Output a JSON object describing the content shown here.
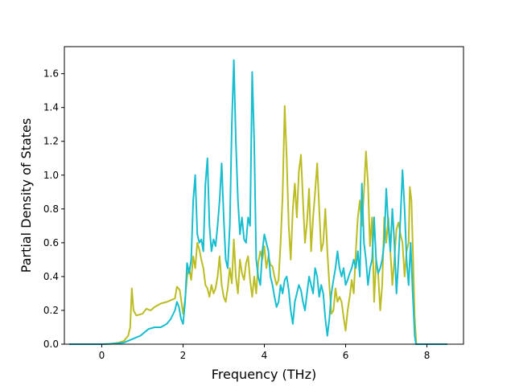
{
  "chart_data": {
    "type": "line",
    "title": "",
    "xlabel": "Frequency (THz)",
    "ylabel": "Partial Density of States",
    "xlim": [
      -0.92,
      8.9
    ],
    "ylim": [
      0,
      1.76
    ],
    "xticks": [
      0,
      2,
      4,
      6,
      8
    ],
    "yticks": [
      0.0,
      0.2,
      0.4,
      0.6,
      0.8,
      1.0,
      1.2,
      1.4,
      1.6
    ],
    "xtick_labels": [
      "0",
      "2",
      "4",
      "6",
      "8"
    ],
    "ytick_labels": [
      "0.0",
      "0.2",
      "0.4",
      "0.6",
      "0.8",
      "1.0",
      "1.2",
      "1.4",
      "1.6"
    ],
    "grid": false,
    "legend": "none",
    "series": [
      {
        "color": "#bcbd22",
        "stroke_width": 2,
        "points": [
          [
            -0.8,
            0
          ],
          [
            0.0,
            0
          ],
          [
            0.2,
            0.002
          ],
          [
            0.4,
            0.008
          ],
          [
            0.55,
            0.02
          ],
          [
            0.65,
            0.05
          ],
          [
            0.7,
            0.1
          ],
          [
            0.74,
            0.33
          ],
          [
            0.78,
            0.2
          ],
          [
            0.85,
            0.17
          ],
          [
            1.0,
            0.18
          ],
          [
            1.1,
            0.21
          ],
          [
            1.2,
            0.2
          ],
          [
            1.3,
            0.22
          ],
          [
            1.45,
            0.24
          ],
          [
            1.6,
            0.25
          ],
          [
            1.7,
            0.26
          ],
          [
            1.8,
            0.27
          ],
          [
            1.85,
            0.34
          ],
          [
            1.92,
            0.32
          ],
          [
            2.0,
            0.18
          ],
          [
            2.05,
            0.26
          ],
          [
            2.1,
            0.4
          ],
          [
            2.15,
            0.45
          ],
          [
            2.2,
            0.38
          ],
          [
            2.25,
            0.52
          ],
          [
            2.3,
            0.45
          ],
          [
            2.35,
            0.6
          ],
          [
            2.4,
            0.56
          ],
          [
            2.45,
            0.5
          ],
          [
            2.5,
            0.45
          ],
          [
            2.55,
            0.35
          ],
          [
            2.6,
            0.33
          ],
          [
            2.65,
            0.28
          ],
          [
            2.7,
            0.35
          ],
          [
            2.75,
            0.3
          ],
          [
            2.8,
            0.33
          ],
          [
            2.85,
            0.4
          ],
          [
            2.9,
            0.52
          ],
          [
            2.95,
            0.35
          ],
          [
            3.0,
            0.28
          ],
          [
            3.05,
            0.25
          ],
          [
            3.1,
            0.33
          ],
          [
            3.15,
            0.45
          ],
          [
            3.2,
            0.36
          ],
          [
            3.25,
            0.62
          ],
          [
            3.3,
            0.4
          ],
          [
            3.35,
            0.3
          ],
          [
            3.4,
            0.5
          ],
          [
            3.45,
            0.42
          ],
          [
            3.5,
            0.38
          ],
          [
            3.55,
            0.48
          ],
          [
            3.6,
            0.52
          ],
          [
            3.65,
            0.38
          ],
          [
            3.7,
            0.28
          ],
          [
            3.75,
            0.4
          ],
          [
            3.8,
            0.3
          ],
          [
            3.85,
            0.48
          ],
          [
            3.9,
            0.55
          ],
          [
            3.95,
            0.5
          ],
          [
            4.0,
            0.58
          ],
          [
            4.05,
            0.45
          ],
          [
            4.1,
            0.52
          ],
          [
            4.15,
            0.47
          ],
          [
            4.2,
            0.46
          ],
          [
            4.25,
            0.4
          ],
          [
            4.3,
            0.35
          ],
          [
            4.35,
            0.38
          ],
          [
            4.4,
            0.6
          ],
          [
            4.45,
            0.88
          ],
          [
            4.5,
            1.41
          ],
          [
            4.55,
            1.1
          ],
          [
            4.6,
            0.7
          ],
          [
            4.65,
            0.5
          ],
          [
            4.7,
            0.8
          ],
          [
            4.75,
            0.95
          ],
          [
            4.8,
            0.75
          ],
          [
            4.85,
            1.02
          ],
          [
            4.9,
            1.12
          ],
          [
            4.95,
            0.85
          ],
          [
            5.0,
            0.6
          ],
          [
            5.05,
            0.72
          ],
          [
            5.1,
            0.92
          ],
          [
            5.15,
            0.55
          ],
          [
            5.2,
            0.75
          ],
          [
            5.25,
            0.9
          ],
          [
            5.3,
            1.07
          ],
          [
            5.35,
            0.8
          ],
          [
            5.4,
            0.55
          ],
          [
            5.45,
            0.6
          ],
          [
            5.5,
            0.8
          ],
          [
            5.55,
            0.55
          ],
          [
            5.6,
            0.35
          ],
          [
            5.65,
            0.18
          ],
          [
            5.7,
            0.2
          ],
          [
            5.75,
            0.33
          ],
          [
            5.8,
            0.25
          ],
          [
            5.85,
            0.28
          ],
          [
            5.9,
            0.25
          ],
          [
            5.95,
            0.16
          ],
          [
            6.0,
            0.08
          ],
          [
            6.05,
            0.2
          ],
          [
            6.1,
            0.28
          ],
          [
            6.15,
            0.38
          ],
          [
            6.2,
            0.3
          ],
          [
            6.25,
            0.55
          ],
          [
            6.3,
            0.75
          ],
          [
            6.35,
            0.85
          ],
          [
            6.4,
            0.7
          ],
          [
            6.45,
            0.9
          ],
          [
            6.5,
            1.14
          ],
          [
            6.55,
            0.95
          ],
          [
            6.6,
            0.58
          ],
          [
            6.65,
            0.75
          ],
          [
            6.7,
            0.25
          ],
          [
            6.75,
            0.5
          ],
          [
            6.8,
            0.42
          ],
          [
            6.85,
            0.2
          ],
          [
            6.9,
            0.35
          ],
          [
            6.95,
            0.75
          ],
          [
            7.0,
            0.6
          ],
          [
            7.05,
            0.75
          ],
          [
            7.1,
            0.55
          ],
          [
            7.15,
            0.35
          ],
          [
            7.2,
            0.5
          ],
          [
            7.25,
            0.68
          ],
          [
            7.3,
            0.72
          ],
          [
            7.35,
            0.65
          ],
          [
            7.4,
            0.6
          ],
          [
            7.45,
            0.4
          ],
          [
            7.5,
            0.55
          ],
          [
            7.55,
            0.6
          ],
          [
            7.58,
            0.93
          ],
          [
            7.62,
            0.85
          ],
          [
            7.66,
            0.5
          ],
          [
            7.7,
            0.15
          ],
          [
            7.74,
            0.0
          ],
          [
            8.0,
            0
          ],
          [
            8.5,
            0
          ]
        ]
      },
      {
        "color": "#17becf",
        "stroke_width": 2,
        "points": [
          [
            -0.8,
            0
          ],
          [
            0.0,
            0
          ],
          [
            0.2,
            0.002
          ],
          [
            0.4,
            0.005
          ],
          [
            0.55,
            0.01
          ],
          [
            0.65,
            0.02
          ],
          [
            0.75,
            0.03
          ],
          [
            0.85,
            0.04
          ],
          [
            0.95,
            0.05
          ],
          [
            1.05,
            0.07
          ],
          [
            1.15,
            0.09
          ],
          [
            1.3,
            0.1
          ],
          [
            1.45,
            0.1
          ],
          [
            1.6,
            0.12
          ],
          [
            1.7,
            0.15
          ],
          [
            1.8,
            0.2
          ],
          [
            1.85,
            0.25
          ],
          [
            1.9,
            0.22
          ],
          [
            1.95,
            0.15
          ],
          [
            2.0,
            0.12
          ],
          [
            2.05,
            0.25
          ],
          [
            2.1,
            0.48
          ],
          [
            2.15,
            0.42
          ],
          [
            2.2,
            0.5
          ],
          [
            2.25,
            0.85
          ],
          [
            2.3,
            1.0
          ],
          [
            2.35,
            0.65
          ],
          [
            2.4,
            0.6
          ],
          [
            2.45,
            0.62
          ],
          [
            2.5,
            0.55
          ],
          [
            2.55,
            0.95
          ],
          [
            2.6,
            1.1
          ],
          [
            2.65,
            0.7
          ],
          [
            2.7,
            0.55
          ],
          [
            2.75,
            0.62
          ],
          [
            2.8,
            0.58
          ],
          [
            2.85,
            0.7
          ],
          [
            2.9,
            0.85
          ],
          [
            2.95,
            1.07
          ],
          [
            3.0,
            0.75
          ],
          [
            3.05,
            0.5
          ],
          [
            3.1,
            0.45
          ],
          [
            3.15,
            0.7
          ],
          [
            3.2,
            1.3
          ],
          [
            3.25,
            1.68
          ],
          [
            3.3,
            1.2
          ],
          [
            3.35,
            0.85
          ],
          [
            3.4,
            0.65
          ],
          [
            3.45,
            0.75
          ],
          [
            3.5,
            0.62
          ],
          [
            3.55,
            0.6
          ],
          [
            3.6,
            0.75
          ],
          [
            3.65,
            0.7
          ],
          [
            3.7,
            1.61
          ],
          [
            3.75,
            1.2
          ],
          [
            3.8,
            0.5
          ],
          [
            3.85,
            0.4
          ],
          [
            3.9,
            0.35
          ],
          [
            3.95,
            0.55
          ],
          [
            4.0,
            0.65
          ],
          [
            4.05,
            0.6
          ],
          [
            4.1,
            0.55
          ],
          [
            4.15,
            0.4
          ],
          [
            4.2,
            0.35
          ],
          [
            4.25,
            0.28
          ],
          [
            4.3,
            0.22
          ],
          [
            4.35,
            0.25
          ],
          [
            4.4,
            0.35
          ],
          [
            4.45,
            0.3
          ],
          [
            4.5,
            0.38
          ],
          [
            4.55,
            0.4
          ],
          [
            4.6,
            0.32
          ],
          [
            4.65,
            0.2
          ],
          [
            4.7,
            0.12
          ],
          [
            4.75,
            0.25
          ],
          [
            4.8,
            0.3
          ],
          [
            4.85,
            0.35
          ],
          [
            4.9,
            0.32
          ],
          [
            4.95,
            0.25
          ],
          [
            5.0,
            0.2
          ],
          [
            5.05,
            0.3
          ],
          [
            5.1,
            0.4
          ],
          [
            5.15,
            0.35
          ],
          [
            5.2,
            0.3
          ],
          [
            5.25,
            0.45
          ],
          [
            5.3,
            0.4
          ],
          [
            5.35,
            0.28
          ],
          [
            5.4,
            0.35
          ],
          [
            5.45,
            0.3
          ],
          [
            5.5,
            0.15
          ],
          [
            5.55,
            0.05
          ],
          [
            5.6,
            0.15
          ],
          [
            5.65,
            0.3
          ],
          [
            5.7,
            0.38
          ],
          [
            5.75,
            0.45
          ],
          [
            5.8,
            0.55
          ],
          [
            5.85,
            0.45
          ],
          [
            5.9,
            0.4
          ],
          [
            5.95,
            0.45
          ],
          [
            6.0,
            0.35
          ],
          [
            6.05,
            0.38
          ],
          [
            6.1,
            0.42
          ],
          [
            6.15,
            0.45
          ],
          [
            6.2,
            0.5
          ],
          [
            6.25,
            0.45
          ],
          [
            6.3,
            0.55
          ],
          [
            6.35,
            0.4
          ],
          [
            6.4,
            0.95
          ],
          [
            6.45,
            0.6
          ],
          [
            6.5,
            0.5
          ],
          [
            6.55,
            0.35
          ],
          [
            6.6,
            0.45
          ],
          [
            6.65,
            0.5
          ],
          [
            6.7,
            0.75
          ],
          [
            6.75,
            0.5
          ],
          [
            6.8,
            0.42
          ],
          [
            6.85,
            0.45
          ],
          [
            6.9,
            0.5
          ],
          [
            6.95,
            0.6
          ],
          [
            7.0,
            0.92
          ],
          [
            7.05,
            0.7
          ],
          [
            7.1,
            0.55
          ],
          [
            7.15,
            0.8
          ],
          [
            7.2,
            0.6
          ],
          [
            7.25,
            0.3
          ],
          [
            7.3,
            0.5
          ],
          [
            7.35,
            0.75
          ],
          [
            7.4,
            1.03
          ],
          [
            7.45,
            0.8
          ],
          [
            7.5,
            0.5
          ],
          [
            7.55,
            0.35
          ],
          [
            7.6,
            0.6
          ],
          [
            7.65,
            0.3
          ],
          [
            7.7,
            0.05
          ],
          [
            7.73,
            0.0
          ],
          [
            8.0,
            0
          ],
          [
            8.5,
            0
          ]
        ]
      }
    ]
  }
}
